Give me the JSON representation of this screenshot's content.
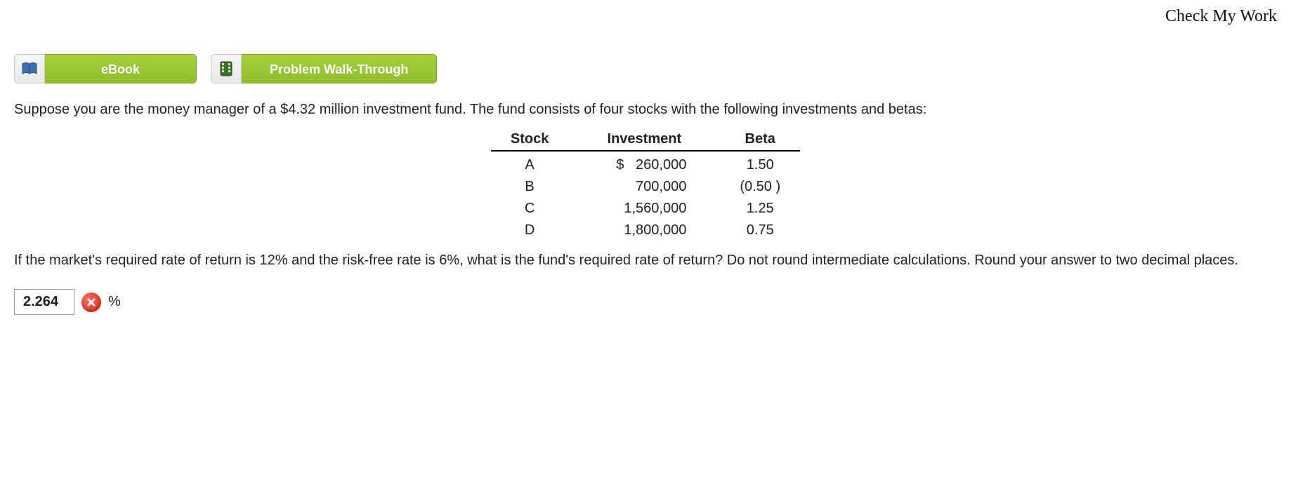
{
  "header": {
    "check_my_work": "Check My Work"
  },
  "toolbar": {
    "ebook_label": "eBook",
    "walkthrough_label": "Problem Walk-Through"
  },
  "problem": {
    "intro": "Suppose you are the money manager of a $4.32 million investment fund. The fund consists of four stocks with the following investments and betas:",
    "table": {
      "headers": {
        "stock": "Stock",
        "investment": "Investment",
        "beta": "Beta"
      },
      "currency_symbol": "$",
      "rows": [
        {
          "stock": "A",
          "investment": "260,000",
          "beta": "1.50",
          "show_currency": true
        },
        {
          "stock": "B",
          "investment": "700,000",
          "beta": "(0.50 )",
          "show_currency": false
        },
        {
          "stock": "C",
          "investment": "1,560,000",
          "beta": "1.25",
          "show_currency": false
        },
        {
          "stock": "D",
          "investment": "1,800,000",
          "beta": "0.75",
          "show_currency": false
        }
      ]
    },
    "question": "If the market's required rate of return is 12% and the risk-free rate is 6%, what is the fund's required rate of return? Do not round intermediate calculations. Round your answer to two decimal places."
  },
  "answer": {
    "value": "2.264",
    "unit": "%",
    "status": "incorrect"
  },
  "colors": {
    "pill_green_top": "#a7d13c",
    "pill_green_bottom": "#8fbf2a",
    "pill_border": "#7aa51d",
    "x_badge": "#d62215"
  }
}
